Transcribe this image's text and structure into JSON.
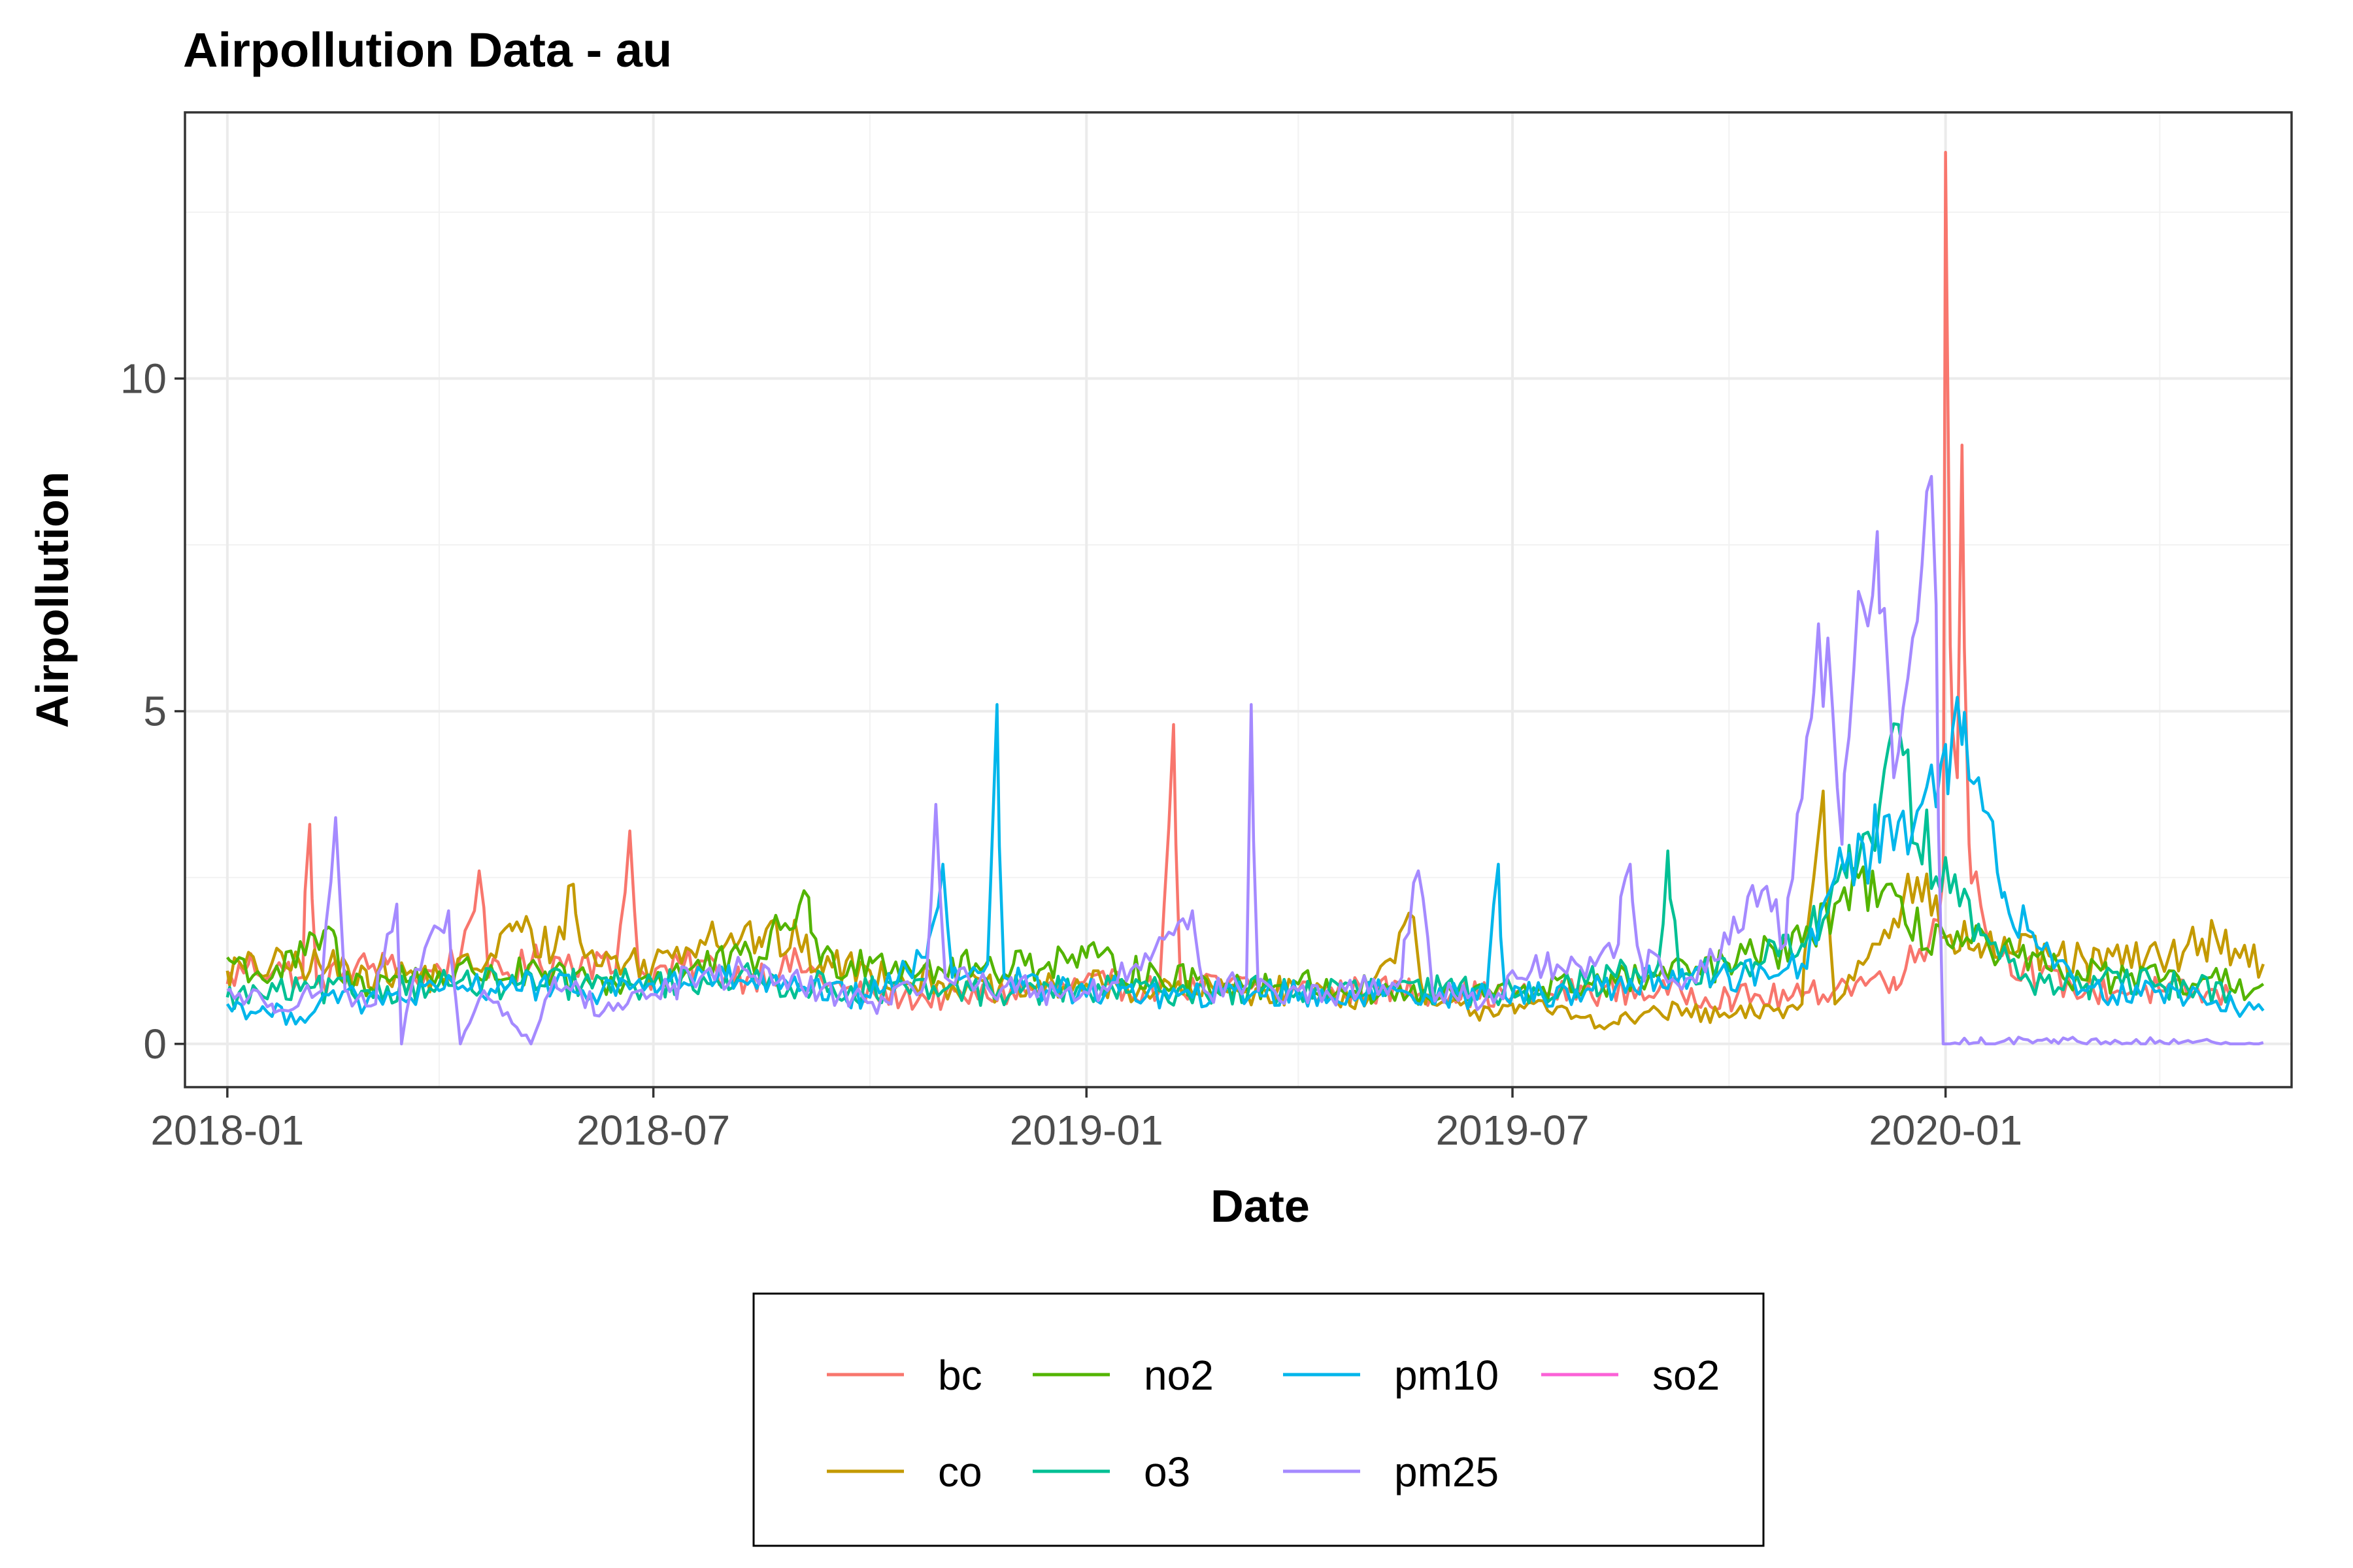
{
  "chart_data": {
    "type": "line",
    "title": "Airpollution Data - au",
    "xlabel": "Date",
    "ylabel": "Airpollution",
    "x_range": [
      "2017-12-14",
      "2020-05-27"
    ],
    "ylim": [
      -0.65,
      14.0
    ],
    "x_ticks": [
      {
        "date": "2018-01-01",
        "label": "2018-01"
      },
      {
        "date": "2018-07-01",
        "label": "2018-07"
      },
      {
        "date": "2019-01-01",
        "label": "2019-01"
      },
      {
        "date": "2019-07-01",
        "label": "2019-07"
      },
      {
        "date": "2020-01-01",
        "label": "2020-01"
      }
    ],
    "x_minor_ticks": [
      "2018-04-01",
      "2018-10-01",
      "2019-04-01",
      "2019-10-01",
      "2020-04-01"
    ],
    "y_ticks": [
      {
        "value": 0,
        "label": "0"
      },
      {
        "value": 5,
        "label": "5"
      },
      {
        "value": 10,
        "label": "10"
      }
    ],
    "y_minor_ticks": [
      2.5,
      7.5,
      12.5
    ],
    "grid": true,
    "legend_position": "bottom",
    "series": [
      {
        "name": "bc",
        "color": "#F8766D",
        "points": [
          [
            "2018-01-01",
            0.9
          ],
          [
            "2018-01-10",
            1.2
          ],
          [
            "2018-01-25",
            1.1
          ],
          [
            "2018-02-02",
            1.0
          ],
          [
            "2018-02-05",
            3.3
          ],
          [
            "2018-02-08",
            0.9
          ],
          [
            "2018-02-20",
            1.1
          ],
          [
            "2018-03-10",
            1.2
          ],
          [
            "2018-03-20",
            0.9
          ],
          [
            "2018-04-10",
            1.3
          ],
          [
            "2018-04-18",
            2.6
          ],
          [
            "2018-04-22",
            1.0
          ],
          [
            "2018-05-10",
            1.2
          ],
          [
            "2018-06-01",
            1.3
          ],
          [
            "2018-06-15",
            1.1
          ],
          [
            "2018-06-21",
            3.2
          ],
          [
            "2018-06-25",
            1.0
          ],
          [
            "2018-07-20",
            1.2
          ],
          [
            "2018-08-10",
            1.0
          ],
          [
            "2018-09-01",
            1.2
          ],
          [
            "2018-09-20",
            0.8
          ],
          [
            "2018-10-15",
            0.7
          ],
          [
            "2018-11-10",
            0.7
          ],
          [
            "2018-12-10",
            0.8
          ],
          [
            "2019-01-10",
            0.9
          ],
          [
            "2019-02-01",
            0.8
          ],
          [
            "2019-02-07",
            4.8
          ],
          [
            "2019-02-10",
            0.8
          ],
          [
            "2019-03-01",
            0.9
          ],
          [
            "2019-04-01",
            0.8
          ],
          [
            "2019-05-01",
            0.8
          ],
          [
            "2019-06-01",
            0.8
          ],
          [
            "2019-07-01",
            0.7
          ],
          [
            "2019-08-01",
            0.8
          ],
          [
            "2019-09-01",
            0.8
          ],
          [
            "2019-10-01",
            0.7
          ],
          [
            "2019-11-01",
            0.7
          ],
          [
            "2019-11-20",
            0.9
          ],
          [
            "2019-12-10",
            1.0
          ],
          [
            "2019-12-25",
            1.5
          ],
          [
            "2019-12-31",
            2.5
          ],
          [
            "2020-01-01",
            13.4
          ],
          [
            "2020-01-03",
            6.0
          ],
          [
            "2020-01-06",
            4.0
          ],
          [
            "2020-01-08",
            9.0
          ],
          [
            "2020-01-11",
            3.0
          ],
          [
            "2020-01-20",
            1.5
          ],
          [
            "2020-02-10",
            1.0
          ],
          [
            "2020-03-01",
            0.8
          ],
          [
            "2020-04-01",
            0.8
          ],
          [
            "2020-05-01",
            0.7
          ]
        ]
      },
      {
        "name": "co",
        "color": "#C49A00",
        "points": [
          [
            "2018-01-01",
            1.1
          ],
          [
            "2018-02-01",
            1.2
          ],
          [
            "2018-03-01",
            1.1
          ],
          [
            "2018-04-01",
            1.0
          ],
          [
            "2018-04-25",
            1.3
          ],
          [
            "2018-05-01",
            1.8
          ],
          [
            "2018-05-20",
            1.4
          ],
          [
            "2018-05-28",
            2.4
          ],
          [
            "2018-06-02",
            1.3
          ],
          [
            "2018-07-01",
            1.2
          ],
          [
            "2018-07-25",
            1.7
          ],
          [
            "2018-08-15",
            1.6
          ],
          [
            "2018-09-01",
            1.5
          ],
          [
            "2018-09-10",
            1.2
          ],
          [
            "2018-10-01",
            1.1
          ],
          [
            "2018-11-01",
            0.9
          ],
          [
            "2018-12-01",
            0.8
          ],
          [
            "2019-01-01",
            0.9
          ],
          [
            "2019-02-01",
            0.8
          ],
          [
            "2019-03-01",
            0.8
          ],
          [
            "2019-04-01",
            0.8
          ],
          [
            "2019-05-01",
            0.7
          ],
          [
            "2019-05-20",
            1.9
          ],
          [
            "2019-05-25",
            0.6
          ],
          [
            "2019-06-15",
            0.5
          ],
          [
            "2019-07-01",
            0.6
          ],
          [
            "2019-08-01",
            0.4
          ],
          [
            "2019-08-15",
            0.3
          ],
          [
            "2019-09-01",
            0.5
          ],
          [
            "2019-10-01",
            0.4
          ],
          [
            "2019-10-20",
            0.5
          ],
          [
            "2019-11-01",
            0.6
          ],
          [
            "2019-11-10",
            3.8
          ],
          [
            "2019-11-15",
            0.6
          ],
          [
            "2019-12-01",
            1.5
          ],
          [
            "2019-12-20",
            2.5
          ],
          [
            "2020-01-01",
            1.6
          ],
          [
            "2020-01-15",
            1.5
          ],
          [
            "2020-02-01",
            1.4
          ],
          [
            "2020-03-01",
            1.2
          ],
          [
            "2020-04-01",
            1.3
          ],
          [
            "2020-04-25",
            1.6
          ],
          [
            "2020-05-15",
            1.2
          ]
        ]
      },
      {
        "name": "no2",
        "color": "#53B400",
        "points": [
          [
            "2018-01-01",
            1.3
          ],
          [
            "2018-01-20",
            1.0
          ],
          [
            "2018-02-15",
            1.7
          ],
          [
            "2018-02-20",
            0.9
          ],
          [
            "2018-03-15",
            1.0
          ],
          [
            "2018-04-15",
            1.1
          ],
          [
            "2018-05-15",
            1.0
          ],
          [
            "2018-06-15",
            0.9
          ],
          [
            "2018-07-15",
            1.1
          ],
          [
            "2018-08-15",
            1.3
          ],
          [
            "2018-09-05",
            2.2
          ],
          [
            "2018-09-10",
            1.2
          ],
          [
            "2018-10-01",
            1.3
          ],
          [
            "2018-11-01",
            1.1
          ],
          [
            "2018-12-01",
            1.2
          ],
          [
            "2019-01-01",
            1.3
          ],
          [
            "2019-02-01",
            1.0
          ],
          [
            "2019-03-01",
            0.9
          ],
          [
            "2019-04-01",
            0.9
          ],
          [
            "2019-05-01",
            0.8
          ],
          [
            "2019-06-01",
            0.7
          ],
          [
            "2019-07-01",
            0.8
          ],
          [
            "2019-08-01",
            0.9
          ],
          [
            "2019-09-01",
            1.0
          ],
          [
            "2019-10-01",
            1.2
          ],
          [
            "2019-11-01",
            1.5
          ],
          [
            "2019-11-25",
            2.5
          ],
          [
            "2019-12-15",
            1.8
          ],
          [
            "2020-01-01",
            1.6
          ],
          [
            "2020-01-20",
            1.4
          ],
          [
            "2020-02-15",
            1.1
          ],
          [
            "2020-03-15",
            1.0
          ],
          [
            "2020-04-15",
            0.9
          ],
          [
            "2020-05-15",
            0.9
          ]
        ]
      },
      {
        "name": "o3",
        "color": "#00C094",
        "points": [
          [
            "2018-01-01",
            0.7
          ],
          [
            "2018-02-01",
            0.8
          ],
          [
            "2018-03-01",
            0.8
          ],
          [
            "2018-04-01",
            0.9
          ],
          [
            "2018-05-01",
            0.9
          ],
          [
            "2018-06-01",
            0.9
          ],
          [
            "2018-07-01",
            0.9
          ],
          [
            "2018-08-01",
            1.0
          ],
          [
            "2018-09-01",
            0.9
          ],
          [
            "2018-10-01",
            0.8
          ],
          [
            "2018-11-01",
            0.8
          ],
          [
            "2018-12-01",
            0.8
          ],
          [
            "2019-01-01",
            0.8
          ],
          [
            "2019-02-01",
            0.8
          ],
          [
            "2019-03-01",
            0.8
          ],
          [
            "2019-04-01",
            0.8
          ],
          [
            "2019-05-01",
            0.8
          ],
          [
            "2019-06-01",
            0.8
          ],
          [
            "2019-07-01",
            0.8
          ],
          [
            "2019-08-01",
            0.9
          ],
          [
            "2019-09-01",
            1.2
          ],
          [
            "2019-09-05",
            2.9
          ],
          [
            "2019-09-10",
            1.0
          ],
          [
            "2019-10-01",
            1.1
          ],
          [
            "2019-11-01",
            1.5
          ],
          [
            "2019-11-20",
            2.5
          ],
          [
            "2019-12-01",
            3.0
          ],
          [
            "2019-12-12",
            4.8
          ],
          [
            "2019-12-20",
            3.0
          ],
          [
            "2020-01-01",
            2.8
          ],
          [
            "2020-01-15",
            1.8
          ],
          [
            "2020-02-01",
            1.0
          ],
          [
            "2020-03-01",
            0.9
          ],
          [
            "2020-04-01",
            0.9
          ],
          [
            "2020-05-01",
            0.8
          ]
        ]
      },
      {
        "name": "pm10",
        "color": "#00B6EB",
        "points": [
          [
            "2018-01-01",
            0.6
          ],
          [
            "2018-01-15",
            0.5
          ],
          [
            "2018-02-01",
            0.4
          ],
          [
            "2018-02-15",
            0.8
          ],
          [
            "2018-03-01",
            0.6
          ],
          [
            "2018-04-01",
            0.8
          ],
          [
            "2018-05-01",
            0.9
          ],
          [
            "2018-06-01",
            0.8
          ],
          [
            "2018-07-01",
            0.9
          ],
          [
            "2018-08-01",
            1.0
          ],
          [
            "2018-09-01",
            0.8
          ],
          [
            "2018-10-01",
            0.7
          ],
          [
            "2018-10-25",
            1.3
          ],
          [
            "2018-11-01",
            2.7
          ],
          [
            "2018-11-05",
            1.0
          ],
          [
            "2018-11-20",
            1.2
          ],
          [
            "2018-11-24",
            5.1
          ],
          [
            "2018-11-27",
            1.0
          ],
          [
            "2018-12-15",
            0.8
          ],
          [
            "2019-01-15",
            0.8
          ],
          [
            "2019-02-15",
            0.7
          ],
          [
            "2019-03-15",
            0.8
          ],
          [
            "2019-04-15",
            0.7
          ],
          [
            "2019-05-15",
            0.8
          ],
          [
            "2019-06-20",
            0.7
          ],
          [
            "2019-06-25",
            2.7
          ],
          [
            "2019-06-28",
            0.7
          ],
          [
            "2019-08-01",
            0.8
          ],
          [
            "2019-09-01",
            1.0
          ],
          [
            "2019-10-01",
            1.0
          ],
          [
            "2019-11-01",
            1.2
          ],
          [
            "2019-11-15",
            2.5
          ],
          [
            "2019-12-01",
            3.0
          ],
          [
            "2019-12-20",
            3.5
          ],
          [
            "2020-01-01",
            4.5
          ],
          [
            "2020-01-08",
            4.5
          ],
          [
            "2020-01-15",
            4.0
          ],
          [
            "2020-01-25",
            2.2
          ],
          [
            "2020-02-15",
            1.3
          ],
          [
            "2020-03-01",
            0.8
          ],
          [
            "2020-04-01",
            0.8
          ],
          [
            "2020-05-15",
            0.5
          ]
        ]
      },
      {
        "name": "pm25",
        "color": "#A58AFF",
        "points": [
          [
            "2018-01-01",
            0.8
          ],
          [
            "2018-01-20",
            0.6
          ],
          [
            "2018-02-10",
            0.8
          ],
          [
            "2018-02-16",
            3.4
          ],
          [
            "2018-02-20",
            0.8
          ],
          [
            "2018-03-05",
            0.6
          ],
          [
            "2018-03-14",
            2.1
          ],
          [
            "2018-03-16",
            0.0
          ],
          [
            "2018-03-20",
            0.8
          ],
          [
            "2018-04-05",
            2.0
          ],
          [
            "2018-04-10",
            0.0
          ],
          [
            "2018-04-20",
            0.8
          ],
          [
            "2018-05-10",
            0.0
          ],
          [
            "2018-05-20",
            1.0
          ],
          [
            "2018-06-10",
            0.5
          ],
          [
            "2018-07-10",
            0.9
          ],
          [
            "2018-08-10",
            1.1
          ],
          [
            "2018-09-10",
            0.8
          ],
          [
            "2018-10-10",
            0.6
          ],
          [
            "2018-10-25",
            1.0
          ],
          [
            "2018-10-29",
            3.6
          ],
          [
            "2018-11-02",
            1.0
          ],
          [
            "2018-12-10",
            0.8
          ],
          [
            "2019-01-10",
            0.8
          ],
          [
            "2019-02-15",
            2.0
          ],
          [
            "2019-02-20",
            0.8
          ],
          [
            "2019-03-10",
            0.9
          ],
          [
            "2019-03-12",
            5.1
          ],
          [
            "2019-03-15",
            0.8
          ],
          [
            "2019-04-15",
            0.7
          ],
          [
            "2019-05-15",
            1.0
          ],
          [
            "2019-05-22",
            2.6
          ],
          [
            "2019-05-28",
            0.8
          ],
          [
            "2019-06-20",
            0.7
          ],
          [
            "2019-07-15",
            1.2
          ],
          [
            "2019-08-01",
            1.0
          ],
          [
            "2019-08-15",
            1.5
          ],
          [
            "2019-08-20",
            2.7
          ],
          [
            "2019-08-25",
            1.2
          ],
          [
            "2019-09-15",
            1.0
          ],
          [
            "2019-10-01",
            1.5
          ],
          [
            "2019-10-15",
            2.3
          ],
          [
            "2019-10-25",
            1.5
          ],
          [
            "2019-11-05",
            4.9
          ],
          [
            "2019-11-12",
            6.1
          ],
          [
            "2019-11-18",
            3.0
          ],
          [
            "2019-11-25",
            6.8
          ],
          [
            "2019-12-03",
            7.7
          ],
          [
            "2019-12-10",
            4.0
          ],
          [
            "2019-12-18",
            6.1
          ],
          [
            "2019-12-24",
            8.3
          ],
          [
            "2019-12-28",
            6.6
          ],
          [
            "2019-12-31",
            0.0
          ],
          [
            "2020-01-15",
            0.02
          ],
          [
            "2020-02-15",
            0.02
          ],
          [
            "2020-03-15",
            0.02
          ],
          [
            "2020-04-15",
            0.02
          ],
          [
            "2020-05-15",
            0.02
          ]
        ]
      },
      {
        "name": "so2",
        "color": "#FB61D7",
        "points": []
      }
    ]
  }
}
